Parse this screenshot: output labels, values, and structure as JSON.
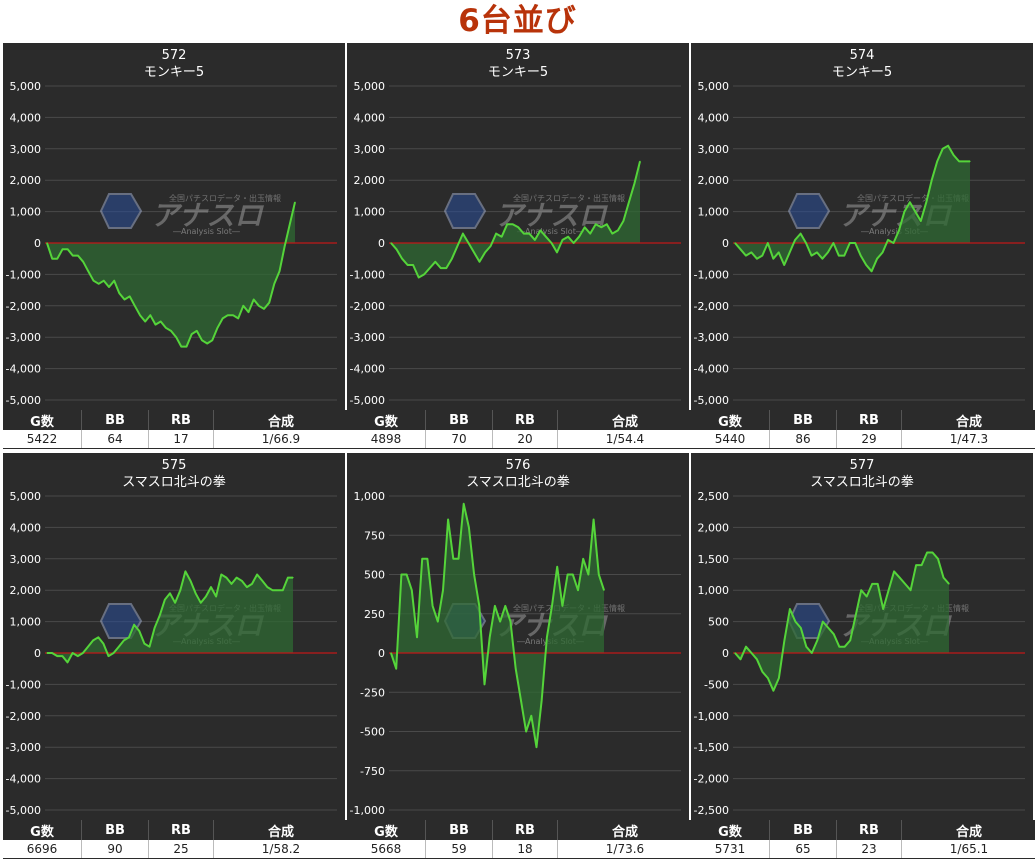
{
  "title": "6台並び",
  "watermark": {
    "brand": "アナスロ",
    "sub": "―Analysis Slot―",
    "tag": "全国パチスロデータ・出玉情報"
  },
  "columns": {
    "games": "G数",
    "bb": "BB",
    "rb": "RB",
    "combined": "合成"
  },
  "colors": {
    "line": "#55d43a",
    "fill": "#2f6a33",
    "zero_line": "#c01818",
    "panel_bg": "#2b2b2b",
    "title": "#b8330a"
  },
  "machines": [
    {
      "number": "572",
      "name": "モンキー5",
      "stats": {
        "games": "5422",
        "bb": "64",
        "rb": "17",
        "combined": "1/66.9"
      }
    },
    {
      "number": "573",
      "name": "モンキー5",
      "stats": {
        "games": "4898",
        "bb": "70",
        "rb": "20",
        "combined": "1/54.4"
      }
    },
    {
      "number": "574",
      "name": "モンキー5",
      "stats": {
        "games": "5440",
        "bb": "86",
        "rb": "29",
        "combined": "1/47.3"
      }
    },
    {
      "number": "575",
      "name": "スマスロ北斗の拳",
      "stats": {
        "games": "6696",
        "bb": "90",
        "rb": "25",
        "combined": "1/58.2"
      }
    },
    {
      "number": "576",
      "name": "スマスロ北斗の拳",
      "stats": {
        "games": "5668",
        "bb": "59",
        "rb": "18",
        "combined": "1/73.6"
      }
    },
    {
      "number": "577",
      "name": "スマスロ北斗の拳",
      "stats": {
        "games": "5731",
        "bb": "65",
        "rb": "23",
        "combined": "1/65.1"
      }
    }
  ],
  "chart_data": [
    {
      "type": "area",
      "title": "572 モンキー5",
      "ylim": [
        -5000,
        5000
      ],
      "yticks": [
        "5,000",
        "4,000",
        "3,000",
        "2,000",
        "1,000",
        "0",
        "-1,000",
        "-2,000",
        "-3,000",
        "-4,000",
        "-5,000"
      ],
      "grid": true,
      "values": [
        0,
        -500,
        -500,
        -200,
        -200,
        -400,
        -400,
        -600,
        -900,
        -1200,
        -1300,
        -1200,
        -1400,
        -1200,
        -1600,
        -1800,
        -1700,
        -2000,
        -2300,
        -2500,
        -2300,
        -2600,
        -2500,
        -2700,
        -2800,
        -3000,
        -3300,
        -3300,
        -2900,
        -2800,
        -3100,
        -3200,
        -3100,
        -2700,
        -2400,
        -2300,
        -2300,
        -2400,
        -2000,
        -2200,
        -1800,
        -2000,
        -2100,
        -1900,
        -1300,
        -900,
        -100,
        600,
        1300
      ]
    },
    {
      "type": "area",
      "title": "573 モンキー5",
      "ylim": [
        -5000,
        5000
      ],
      "yticks": [
        "5,000",
        "4,000",
        "3,000",
        "2,000",
        "1,000",
        "0",
        "-1,000",
        "-2,000",
        "-3,000",
        "-4,000",
        "-5,000"
      ],
      "grid": true,
      "values": [
        0,
        -200,
        -500,
        -700,
        -700,
        -1100,
        -1000,
        -800,
        -600,
        -800,
        -800,
        -500,
        -100,
        300,
        0,
        -300,
        -600,
        -300,
        -100,
        300,
        200,
        600,
        600,
        500,
        300,
        300,
        100,
        400,
        200,
        0,
        -300,
        100,
        200,
        0,
        200,
        500,
        300,
        600,
        500,
        600,
        300,
        400,
        700,
        1300,
        1900,
        2600
      ]
    },
    {
      "type": "area",
      "title": "574 モンキー5",
      "ylim": [
        -5000,
        5000
      ],
      "yticks": [
        "5,000",
        "4,000",
        "3,000",
        "2,000",
        "1,000",
        "0",
        "-1,000",
        "-2,000",
        "-3,000",
        "-4,000",
        "-5,000"
      ],
      "grid": true,
      "values": [
        0,
        -200,
        -400,
        -300,
        -500,
        -400,
        0,
        -500,
        -300,
        -700,
        -300,
        100,
        300,
        0,
        -400,
        -300,
        -500,
        -300,
        0,
        -400,
        -400,
        0,
        0,
        -400,
        -700,
        -900,
        -500,
        -300,
        100,
        0,
        400,
        1000,
        1300,
        1000,
        700,
        1300,
        2000,
        2600,
        3000,
        3100,
        2800,
        2600,
        2600,
        2600
      ]
    },
    {
      "type": "area",
      "title": "575 スマスロ北斗の拳",
      "ylim": [
        -5000,
        5000
      ],
      "yticks": [
        "5,000",
        "4,000",
        "3,000",
        "2,000",
        "1,000",
        "0",
        "-1,000",
        "-2,000",
        "-3,000",
        "-4,000",
        "-5,000"
      ],
      "grid": true,
      "values": [
        0,
        0,
        -100,
        -100,
        -300,
        0,
        -100,
        0,
        200,
        400,
        500,
        300,
        -100,
        0,
        200,
        400,
        500,
        900,
        700,
        300,
        200,
        800,
        1200,
        1700,
        1900,
        1600,
        2000,
        2600,
        2300,
        1900,
        1600,
        1800,
        2100,
        1800,
        2500,
        2400,
        2200,
        2400,
        2300,
        2100,
        2200,
        2500,
        2300,
        2100,
        2000,
        2000,
        2000,
        2400,
        2400
      ]
    },
    {
      "type": "area",
      "title": "576 スマスロ北斗の拳",
      "ylim": [
        -1000,
        1000
      ],
      "yticks": [
        "1,000",
        "750",
        "500",
        "250",
        "0",
        "-250",
        "-500",
        "-750",
        "-1,000"
      ],
      "grid": true,
      "values": [
        0,
        -100,
        500,
        500,
        400,
        100,
        600,
        600,
        300,
        200,
        400,
        850,
        600,
        600,
        950,
        800,
        500,
        300,
        -200,
        100,
        300,
        200,
        300,
        200,
        -100,
        -300,
        -500,
        -400,
        -600,
        -300,
        100,
        300,
        550,
        300,
        500,
        500,
        400,
        600,
        500,
        850,
        500,
        400
      ]
    },
    {
      "type": "area",
      "title": "577 スマスロ北斗の拳",
      "ylim": [
        -2500,
        2500
      ],
      "yticks": [
        "2,500",
        "2,000",
        "1,500",
        "1,000",
        "500",
        "0",
        "-500",
        "-1,000",
        "-1,500",
        "-2,000",
        "-2,500"
      ],
      "grid": true,
      "values": [
        0,
        -100,
        100,
        0,
        -100,
        -300,
        -400,
        -600,
        -400,
        200,
        700,
        500,
        400,
        100,
        0,
        200,
        500,
        400,
        300,
        100,
        100,
        200,
        600,
        1000,
        900,
        1100,
        1100,
        700,
        1000,
        1300,
        1200,
        1100,
        1000,
        1400,
        1400,
        1600,
        1600,
        1500,
        1200,
        1100
      ]
    }
  ]
}
